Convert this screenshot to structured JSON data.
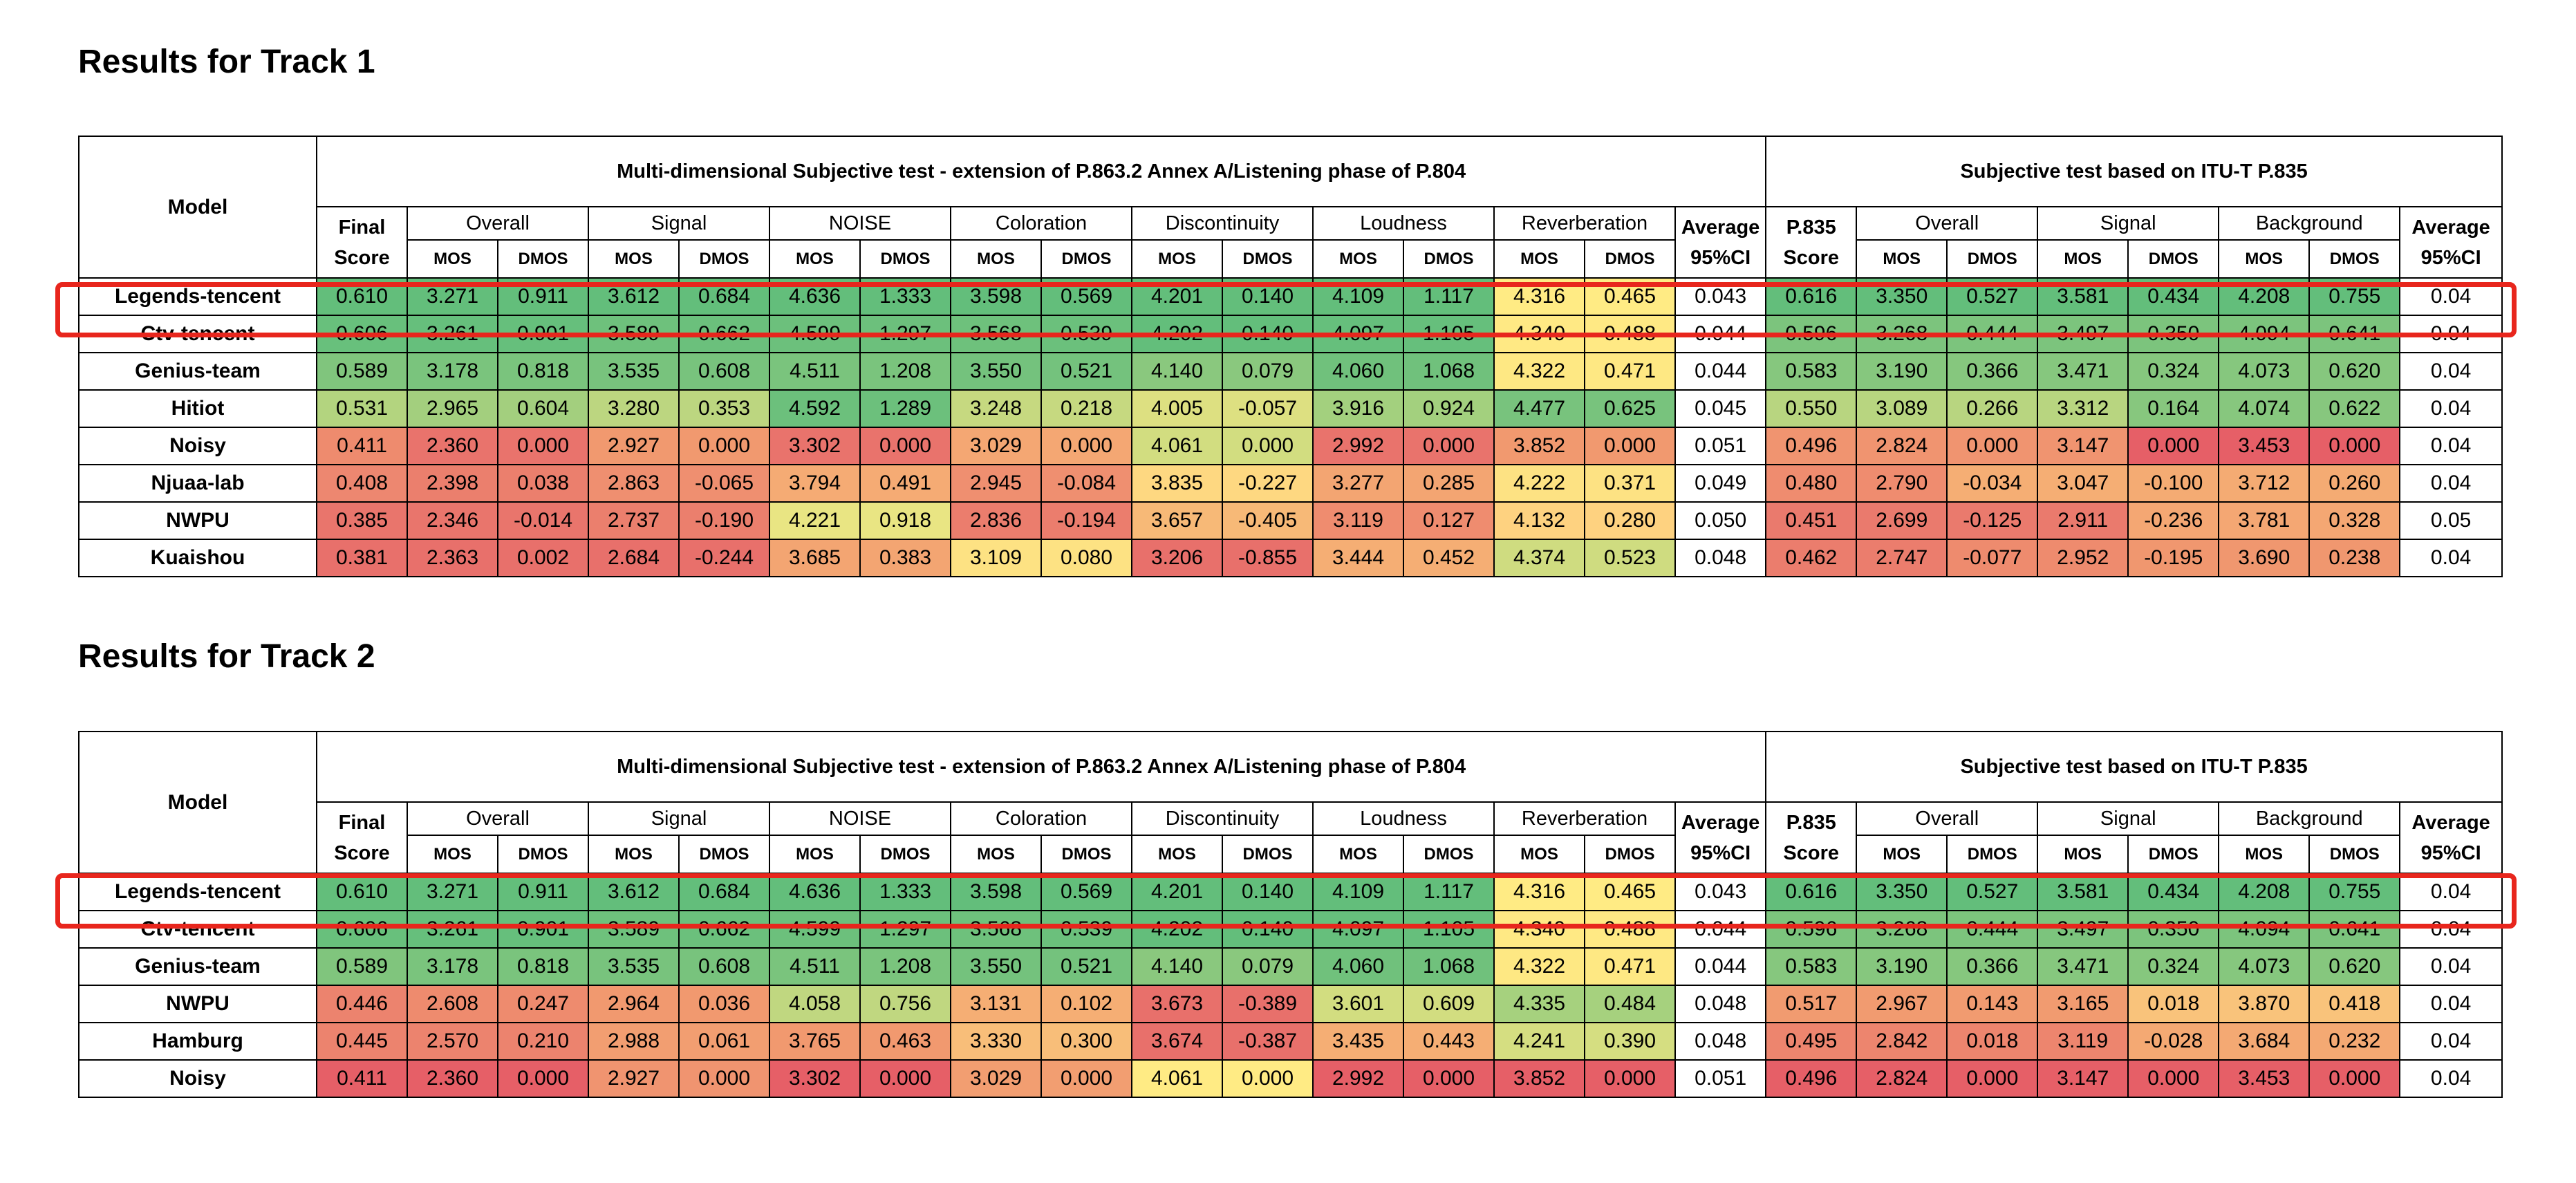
{
  "tracks": [
    {
      "title": "Results for Track 1",
      "headers": {
        "model": "Model",
        "multi_title": "Multi-dimensional Subjective test  - extension of P.863.2 Annex A/Listening phase of P.804",
        "p835_title": "Subjective test based on ITU-T P.835",
        "final_score": [
          "Final",
          "Score"
        ],
        "p835_score": [
          "P.835",
          "Score"
        ],
        "avg_ci": [
          "Average",
          "95%CI"
        ],
        "multi_groups": [
          "Overall",
          "Signal",
          "NOISE",
          "Coloration",
          "Discontinuity",
          "Loudness",
          "Reverberation"
        ],
        "p835_groups": [
          "Overall",
          "Signal",
          "Background"
        ],
        "mos": "MOS",
        "dmos": "DMOS"
      },
      "rows": [
        {
          "model": "Legends-tencent",
          "final": "0.610",
          "multi": [
            "3.271",
            "0.911",
            "3.612",
            "0.684",
            "4.636",
            "1.333",
            "3.598",
            "0.569",
            "4.201",
            "0.140",
            "4.109",
            "1.117",
            "4.316",
            "0.465"
          ],
          "ci1": "0.043",
          "p835": "0.616",
          "p835_vals": [
            "3.350",
            "0.527",
            "3.581",
            "0.434",
            "4.208",
            "0.755"
          ],
          "ci2": "0.04"
        },
        {
          "model": "Ctv-tencent",
          "final": "0.606",
          "multi": [
            "3.261",
            "0.901",
            "3.589",
            "0.662",
            "4.599",
            "1.297",
            "3.568",
            "0.539",
            "4.202",
            "0.140",
            "4.097",
            "1.105",
            "4.340",
            "0.488"
          ],
          "ci1": "0.044",
          "p835": "0.596",
          "p835_vals": [
            "3.268",
            "0.444",
            "3.497",
            "0.350",
            "4.094",
            "0.641"
          ],
          "ci2": "0.04"
        },
        {
          "model": "Genius-team",
          "final": "0.589",
          "multi": [
            "3.178",
            "0.818",
            "3.535",
            "0.608",
            "4.511",
            "1.208",
            "3.550",
            "0.521",
            "4.140",
            "0.079",
            "4.060",
            "1.068",
            "4.322",
            "0.471"
          ],
          "ci1": "0.044",
          "p835": "0.583",
          "p835_vals": [
            "3.190",
            "0.366",
            "3.471",
            "0.324",
            "4.073",
            "0.620"
          ],
          "ci2": "0.04"
        },
        {
          "model": "Hitiot",
          "final": "0.531",
          "multi": [
            "2.965",
            "0.604",
            "3.280",
            "0.353",
            "4.592",
            "1.289",
            "3.248",
            "0.218",
            "4.005",
            "-0.057",
            "3.916",
            "0.924",
            "4.477",
            "0.625"
          ],
          "ci1": "0.045",
          "p835": "0.550",
          "p835_vals": [
            "3.089",
            "0.266",
            "3.312",
            "0.164",
            "4.074",
            "0.622"
          ],
          "ci2": "0.04"
        },
        {
          "model": "Noisy",
          "final": "0.411",
          "multi": [
            "2.360",
            "0.000",
            "2.927",
            "0.000",
            "3.302",
            "0.000",
            "3.029",
            "0.000",
            "4.061",
            "0.000",
            "2.992",
            "0.000",
            "3.852",
            "0.000"
          ],
          "ci1": "0.051",
          "p835": "0.496",
          "p835_vals": [
            "2.824",
            "0.000",
            "3.147",
            "0.000",
            "3.453",
            "0.000"
          ],
          "ci2": "0.04"
        },
        {
          "model": "Njuaa-lab",
          "final": "0.408",
          "multi": [
            "2.398",
            "0.038",
            "2.863",
            "-0.065",
            "3.794",
            "0.491",
            "2.945",
            "-0.084",
            "3.835",
            "-0.227",
            "3.277",
            "0.285",
            "4.222",
            "0.371"
          ],
          "ci1": "0.049",
          "p835": "0.480",
          "p835_vals": [
            "2.790",
            "-0.034",
            "3.047",
            "-0.100",
            "3.712",
            "0.260"
          ],
          "ci2": "0.04"
        },
        {
          "model": "NWPU",
          "final": "0.385",
          "multi": [
            "2.346",
            "-0.014",
            "2.737",
            "-0.190",
            "4.221",
            "0.918",
            "2.836",
            "-0.194",
            "3.657",
            "-0.405",
            "3.119",
            "0.127",
            "4.132",
            "0.280"
          ],
          "ci1": "0.050",
          "p835": "0.451",
          "p835_vals": [
            "2.699",
            "-0.125",
            "2.911",
            "-0.236",
            "3.781",
            "0.328"
          ],
          "ci2": "0.05"
        },
        {
          "model": "Kuaishou",
          "final": "0.381",
          "multi": [
            "2.363",
            "0.002",
            "2.684",
            "-0.244",
            "3.685",
            "0.383",
            "3.109",
            "0.080",
            "3.206",
            "-0.855",
            "3.444",
            "0.452",
            "4.374",
            "0.523"
          ],
          "ci1": "0.048",
          "p835": "0.462",
          "p835_vals": [
            "2.747",
            "-0.077",
            "2.952",
            "-0.195",
            "3.690",
            "0.238"
          ],
          "ci2": "0.04"
        }
      ],
      "colors": [
        [
          "#63be7b",
          "#63be7b",
          "#63be7b",
          "#63be7b",
          "#63be7b",
          "#63be7b",
          "#63be7b",
          "#63be7b",
          "#63be7b",
          "#63be7b",
          "#63be7b",
          "#63be7b",
          "#63be7b",
          "#ffeb84",
          "#ffeb84",
          "#63be7b",
          "#63be7b",
          "#63be7b",
          "#63be7b",
          "#63be7b",
          "#63be7b",
          "#63be7b"
        ],
        [
          "#68c07c",
          "#66bf7c",
          "#66bf7c",
          "#6ec17c",
          "#6bc07c",
          "#6cc07c",
          "#6cc07c",
          "#6ec17c",
          "#6bc07c",
          "#63be7b",
          "#63be7b",
          "#66bf7c",
          "#66bf7c",
          "#ffe984",
          "#ffe984",
          "#7cc47d",
          "#7cc47d",
          "#7cc47d",
          "#7cc47d",
          "#7cc47d",
          "#7cc47d",
          "#7cc47d"
        ],
        [
          "#80c57d",
          "#7ac47d",
          "#7ac47d",
          "#78c37d",
          "#78c37d",
          "#7ac47d",
          "#7ac47d",
          "#74c27d",
          "#74c27d",
          "#8ac87e",
          "#8ac87e",
          "#70c17c",
          "#70c17c",
          "#fee883",
          "#fee883",
          "#86c77e",
          "#86c77e",
          "#86c77e",
          "#86c77e",
          "#86c77e",
          "#86c77e",
          "#86c77e"
        ],
        [
          "#b3d47f",
          "#a3cf7e",
          "#a3cf7e",
          "#bcd680",
          "#bcd680",
          "#6cc07c",
          "#6cc07c",
          "#c6d980",
          "#c6d980",
          "#dde081",
          "#dde081",
          "#a3d07e",
          "#a3d07e",
          "#78c37d",
          "#78c37d",
          "#b8d580",
          "#b8d580",
          "#b8d580",
          "#b8d580",
          "#87c77e",
          "#87c77e",
          "#87c77e"
        ],
        [
          "#ee8b6e",
          "#e9736c",
          "#e9736c",
          "#f1996f",
          "#f1996f",
          "#e9736c",
          "#e9736c",
          "#f4a773",
          "#f4a773",
          "#d2dd80",
          "#d2dd80",
          "#e9736c",
          "#e9736c",
          "#f1996f",
          "#f1996f",
          "#f09470",
          "#f09470",
          "#f09470",
          "#f09470",
          "#e65f67",
          "#e65f67",
          "#e65f67"
        ],
        [
          "#ed8770",
          "#eb7f6d",
          "#eb7f6d",
          "#ef8f70",
          "#ef8f70",
          "#f5ab74",
          "#f5ab74",
          "#ef8f70",
          "#ef8f70",
          "#fed881",
          "#fed881",
          "#f3a572",
          "#f3a572",
          "#fde283",
          "#fde283",
          "#ef8c6f",
          "#ef8c6f",
          "#f5ae74",
          "#f5ae74",
          "#f4ab73",
          "#f4ab73",
          "#f4ab73"
        ],
        [
          "#e9756c",
          "#e9756c",
          "#e9756c",
          "#eb7f6d",
          "#eb7f6d",
          "#e9e583",
          "#e9e583",
          "#eb7d6d",
          "#eb7d6d",
          "#f7b977",
          "#f7b977",
          "#ef8c6f",
          "#ef8c6f",
          "#fed280",
          "#fed280",
          "#ea7a6d",
          "#ea7a6d",
          "#ea7a6d",
          "#ea7a6d",
          "#f4a773",
          "#f4a773",
          "#f4a773"
        ],
        [
          "#e8706b",
          "#e8706b",
          "#e8706b",
          "#e8706b",
          "#e8706b",
          "#f3a572",
          "#f3a572",
          "#fde283",
          "#fde283",
          "#e8706b",
          "#e8706b",
          "#f5ae74",
          "#f5ae74",
          "#cfdc80",
          "#cfdc80",
          "#eb7d6d",
          "#eb7d6d",
          "#ee8b6e",
          "#ee8b6e",
          "#f0976f",
          "#f0976f",
          "#f0976f"
        ]
      ]
    },
    {
      "title": "Results for Track 2",
      "headers": {
        "model": "Model",
        "multi_title": "Multi-dimensional Subjective test  - extension of P.863.2 Annex A/Listening phase of P.804",
        "p835_title": "Subjective test based on ITU-T P.835",
        "final_score": [
          "Final",
          "Score"
        ],
        "p835_score": [
          "P.835",
          "Score"
        ],
        "avg_ci": [
          "Average",
          "95%CI"
        ],
        "multi_groups": [
          "Overall",
          "Signal",
          "NOISE",
          "Coloration",
          "Discontinuity",
          "Loudness",
          "Reverberation"
        ],
        "p835_groups": [
          "Overall",
          "Signal",
          "Background"
        ],
        "mos": "MOS",
        "dmos": "DMOS"
      },
      "rows": [
        {
          "model": "Legends-tencent",
          "final": "0.610",
          "multi": [
            "3.271",
            "0.911",
            "3.612",
            "0.684",
            "4.636",
            "1.333",
            "3.598",
            "0.569",
            "4.201",
            "0.140",
            "4.109",
            "1.117",
            "4.316",
            "0.465"
          ],
          "ci1": "0.043",
          "p835": "0.616",
          "p835_vals": [
            "3.350",
            "0.527",
            "3.581",
            "0.434",
            "4.208",
            "0.755"
          ],
          "ci2": "0.04"
        },
        {
          "model": "Ctv-tencent",
          "final": "0.606",
          "multi": [
            "3.261",
            "0.901",
            "3.589",
            "0.662",
            "4.599",
            "1.297",
            "3.568",
            "0.539",
            "4.202",
            "0.140",
            "4.097",
            "1.105",
            "4.340",
            "0.488"
          ],
          "ci1": "0.044",
          "p835": "0.596",
          "p835_vals": [
            "3.268",
            "0.444",
            "3.497",
            "0.350",
            "4.094",
            "0.641"
          ],
          "ci2": "0.04"
        },
        {
          "model": "Genius-team",
          "final": "0.589",
          "multi": [
            "3.178",
            "0.818",
            "3.535",
            "0.608",
            "4.511",
            "1.208",
            "3.550",
            "0.521",
            "4.140",
            "0.079",
            "4.060",
            "1.068",
            "4.322",
            "0.471"
          ],
          "ci1": "0.044",
          "p835": "0.583",
          "p835_vals": [
            "3.190",
            "0.366",
            "3.471",
            "0.324",
            "4.073",
            "0.620"
          ],
          "ci2": "0.04"
        },
        {
          "model": "NWPU",
          "final": "0.446",
          "multi": [
            "2.608",
            "0.247",
            "2.964",
            "0.036",
            "4.058",
            "0.756",
            "3.131",
            "0.102",
            "3.673",
            "-0.389",
            "3.601",
            "0.609",
            "4.335",
            "0.484"
          ],
          "ci1": "0.048",
          "p835": "0.517",
          "p835_vals": [
            "2.967",
            "0.143",
            "3.165",
            "0.018",
            "3.870",
            "0.418"
          ],
          "ci2": "0.04"
        },
        {
          "model": "Hamburg",
          "final": "0.445",
          "multi": [
            "2.570",
            "0.210",
            "2.988",
            "0.061",
            "3.765",
            "0.463",
            "3.330",
            "0.300",
            "3.674",
            "-0.387",
            "3.435",
            "0.443",
            "4.241",
            "0.390"
          ],
          "ci1": "0.048",
          "p835": "0.495",
          "p835_vals": [
            "2.842",
            "0.018",
            "3.119",
            "-0.028",
            "3.684",
            "0.232"
          ],
          "ci2": "0.04"
        },
        {
          "model": "Noisy",
          "final": "0.411",
          "multi": [
            "2.360",
            "0.000",
            "2.927",
            "0.000",
            "3.302",
            "0.000",
            "3.029",
            "0.000",
            "4.061",
            "0.000",
            "2.992",
            "0.000",
            "3.852",
            "0.000"
          ],
          "ci1": "0.051",
          "p835": "0.496",
          "p835_vals": [
            "2.824",
            "0.000",
            "3.147",
            "0.000",
            "3.453",
            "0.000"
          ],
          "ci2": "0.04"
        }
      ],
      "colors": [
        [
          "#63be7b",
          "#63be7b",
          "#63be7b",
          "#63be7b",
          "#63be7b",
          "#63be7b",
          "#63be7b",
          "#63be7b",
          "#63be7b",
          "#63be7b",
          "#63be7b",
          "#63be7b",
          "#63be7b",
          "#ffeb84",
          "#ffeb84",
          "#63be7b",
          "#63be7b",
          "#63be7b",
          "#63be7b",
          "#63be7b",
          "#63be7b",
          "#63be7b"
        ],
        [
          "#68c07c",
          "#66bf7c",
          "#66bf7c",
          "#6ec17c",
          "#6bc07c",
          "#6cc07c",
          "#6cc07c",
          "#6ec17c",
          "#6bc07c",
          "#63be7b",
          "#63be7b",
          "#66bf7c",
          "#66bf7c",
          "#ffe984",
          "#ffe984",
          "#7cc47d",
          "#7cc47d",
          "#7cc47d",
          "#7cc47d",
          "#7cc47d",
          "#7cc47d",
          "#7cc47d"
        ],
        [
          "#80c57d",
          "#7ac47d",
          "#7ac47d",
          "#78c37d",
          "#78c37d",
          "#7ac47d",
          "#7ac47d",
          "#74c27d",
          "#74c27d",
          "#8ac87e",
          "#8ac87e",
          "#70c17c",
          "#70c17c",
          "#fee883",
          "#fee883",
          "#86c77e",
          "#86c77e",
          "#86c77e",
          "#86c77e",
          "#86c77e",
          "#86c77e",
          "#86c77e"
        ],
        [
          "#ec836e",
          "#ee8b6e",
          "#ee8b6e",
          "#f1996f",
          "#f1996f",
          "#c0d780",
          "#c0d780",
          "#f5ae74",
          "#f5ae74",
          "#e8706b",
          "#e8706b",
          "#d2dd80",
          "#d2dd80",
          "#a6d17e",
          "#a6d17e",
          "#f19b70",
          "#f19b70",
          "#f19b70",
          "#f19b70",
          "#f9c37b",
          "#f9c37b",
          "#f9c37b"
        ],
        [
          "#ec836e",
          "#ec836e",
          "#ec836e",
          "#f29e71",
          "#f29e71",
          "#f1996f",
          "#f1996f",
          "#f8be79",
          "#f8be79",
          "#e8706b",
          "#e8706b",
          "#f5ae74",
          "#f5ae74",
          "#d5de81",
          "#d5de81",
          "#ed856e",
          "#ed856e",
          "#ed856e",
          "#ed856e",
          "#f4a973",
          "#f4a973",
          "#f4a973"
        ],
        [
          "#e65f67",
          "#e65f67",
          "#e65f67",
          "#f09470",
          "#f09470",
          "#e65f67",
          "#e65f67",
          "#f29e71",
          "#f29e71",
          "#ffeb84",
          "#ffeb84",
          "#e65f67",
          "#e65f67",
          "#e65f67",
          "#e65f67",
          "#e65f67",
          "#e65f67",
          "#e65f67",
          "#e65f67",
          "#e65f67",
          "#e65f67",
          "#e65f67"
        ]
      ]
    }
  ]
}
